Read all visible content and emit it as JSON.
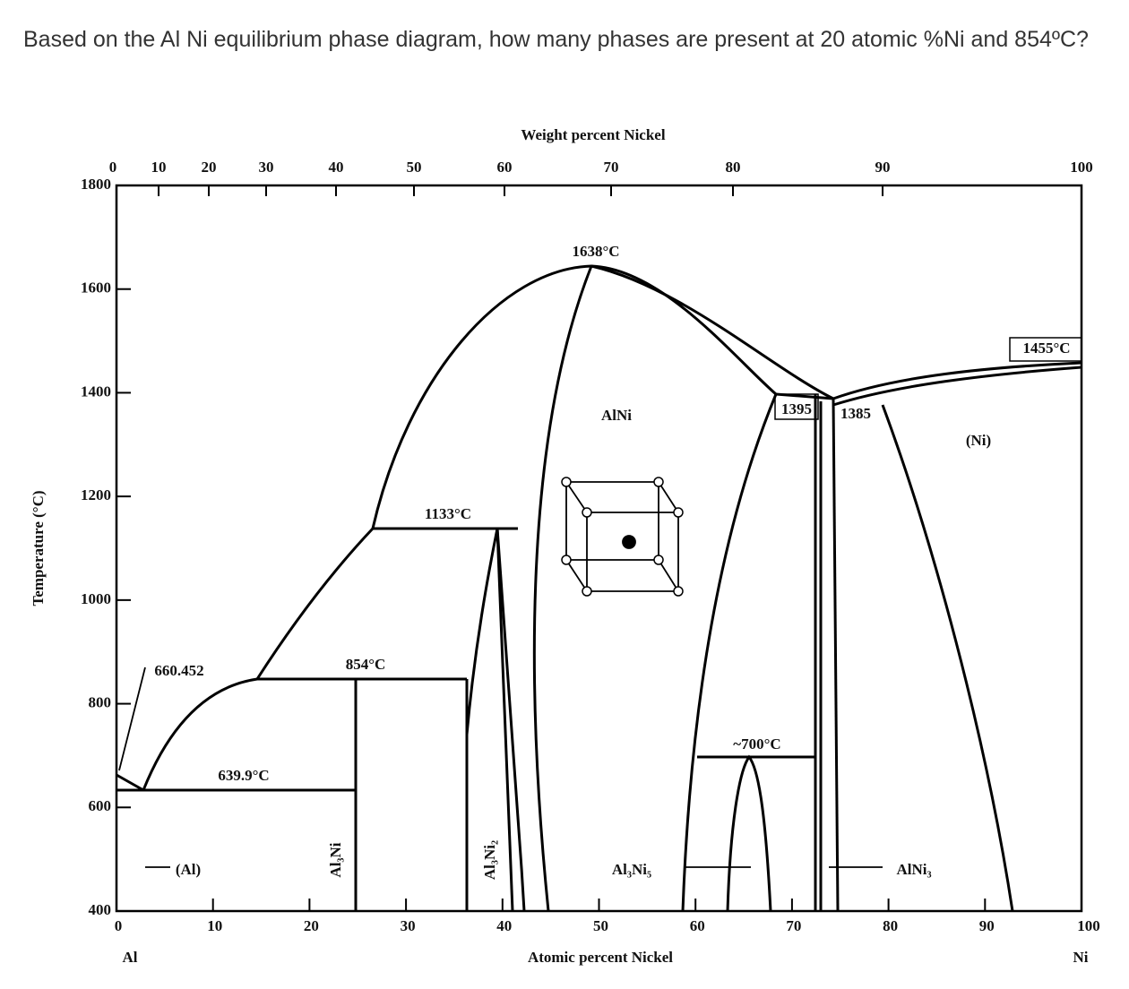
{
  "question": "Based on the Al Ni equilibrium phase diagram, how many phases are present at 20 atomic %Ni and 854ºC?",
  "diagram": {
    "top_axis_title": "Weight percent Nickel",
    "top_ticks": [
      "0",
      "10",
      "20",
      "30",
      "40",
      "50",
      "60",
      "70",
      "80",
      "90",
      "100"
    ],
    "left_axis_title": "Temperature (°C)",
    "left_ticks": [
      "1800",
      "1600",
      "1400",
      "1200",
      "1000",
      "800",
      "600",
      "400"
    ],
    "bottom_ticks": [
      "0",
      "10",
      "20",
      "30",
      "40",
      "50",
      "60",
      "70",
      "80",
      "90",
      "100"
    ],
    "bottom_axis_title": "Atomic percent Nickel",
    "left_end_label": "Al",
    "right_end_label": "Ni",
    "labels": [
      "1638°C",
      "1455°C",
      "1395",
      "1385",
      "AlNi",
      "(Ni)",
      "1133°C",
      "660.452",
      "854°C",
      "~700°C",
      "639.9°C",
      "(Al)",
      "Al₃Ni",
      "Al₃Ni₂",
      "Al₃Ni₅",
      "AlNi₃"
    ]
  }
}
